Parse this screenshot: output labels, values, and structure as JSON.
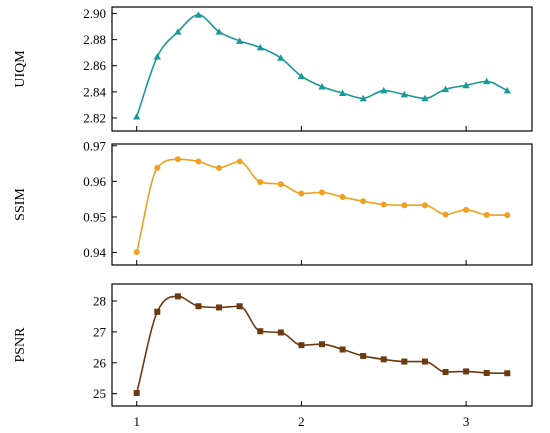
{
  "chart_data": [
    {
      "type": "line",
      "ylabel": "UIQM",
      "ylim": [
        2.81,
        2.905
      ],
      "yticks": [
        2.82,
        2.84,
        2.86,
        2.88,
        2.9
      ],
      "ytick_labels": [
        "2.82",
        "2.84",
        "2.86",
        "2.88",
        "2.90"
      ],
      "xlim": [
        0.85,
        3.4
      ],
      "show_xtick_labels": false,
      "color": "#1a9a96",
      "marker": "triangle",
      "series": [
        {
          "x": [
            1.0,
            1.125,
            1.25,
            1.375,
            1.5,
            1.625,
            1.75,
            1.875,
            2.0,
            2.125,
            2.25,
            2.375,
            2.5,
            2.625,
            2.75,
            2.875,
            3.0,
            3.125,
            3.25
          ],
          "values": [
            2.821,
            2.867,
            2.886,
            2.899,
            2.886,
            2.879,
            2.874,
            2.866,
            2.852,
            2.844,
            2.839,
            2.835,
            2.841,
            2.838,
            2.835,
            2.842,
            2.845,
            2.848,
            2.841
          ]
        }
      ]
    },
    {
      "type": "line",
      "ylabel": "SSIM",
      "ylim": [
        0.9365,
        0.9705
      ],
      "yticks": [
        0.94,
        0.95,
        0.96,
        0.97
      ],
      "ytick_labels": [
        "0.94",
        "0.95",
        "0.96",
        "0.97"
      ],
      "xlim": [
        0.85,
        3.4
      ],
      "show_xtick_labels": false,
      "color": "#f0a020",
      "marker": "circle",
      "series": [
        {
          "x": [
            1.0,
            1.125,
            1.25,
            1.375,
            1.5,
            1.625,
            1.75,
            1.875,
            2.0,
            2.125,
            2.25,
            2.375,
            2.5,
            2.625,
            2.75,
            2.875,
            3.0,
            3.125,
            3.25
          ],
          "values": [
            0.9401,
            0.9638,
            0.9662,
            0.9656,
            0.9638,
            0.9656,
            0.9598,
            0.9592,
            0.9566,
            0.9569,
            0.9556,
            0.9544,
            0.9535,
            0.9533,
            0.9533,
            0.9507,
            0.952,
            0.9506,
            0.9505
          ]
        }
      ]
    },
    {
      "type": "line",
      "ylabel": "PSNR",
      "ylim": [
        24.6,
        28.55
      ],
      "yticks": [
        25,
        26,
        27,
        28
      ],
      "ytick_labels": [
        "25",
        "26",
        "27",
        "28"
      ],
      "xlim": [
        0.85,
        3.4
      ],
      "xticks": [
        1,
        2,
        3
      ],
      "xtick_labels": [
        "1",
        "2",
        "3"
      ],
      "show_xtick_labels": true,
      "color": "#6b3a10",
      "marker": "square",
      "series": [
        {
          "x": [
            1.0,
            1.125,
            1.25,
            1.375,
            1.5,
            1.625,
            1.75,
            1.875,
            2.0,
            2.125,
            2.25,
            2.375,
            2.5,
            2.625,
            2.75,
            2.875,
            3.0,
            3.125,
            3.25
          ],
          "values": [
            25.02,
            27.65,
            28.15,
            27.83,
            27.79,
            27.83,
            27.02,
            26.98,
            26.57,
            26.6,
            26.43,
            26.22,
            26.11,
            26.04,
            26.04,
            25.7,
            25.72,
            25.67,
            25.66
          ]
        }
      ]
    }
  ]
}
